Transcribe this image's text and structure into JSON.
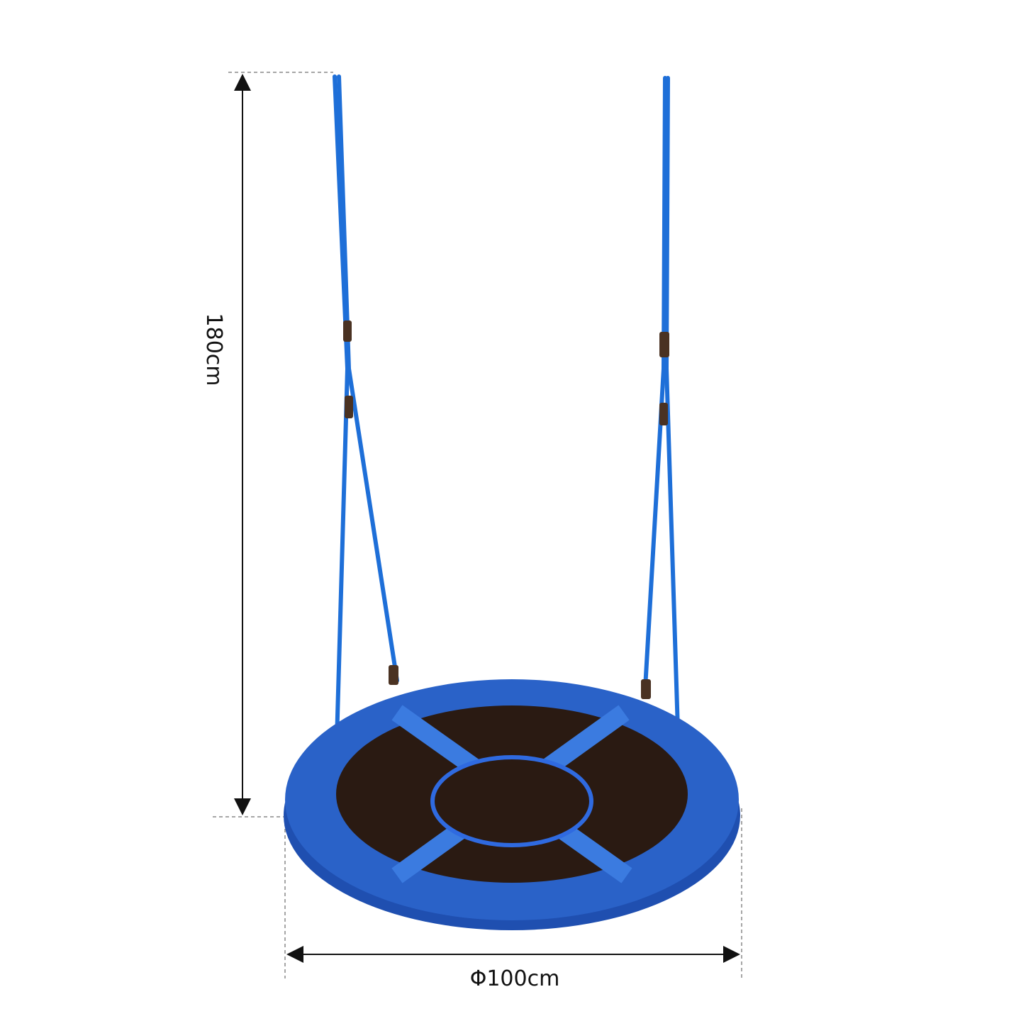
{
  "dimensions": {
    "height": "180cm",
    "diameter": "Φ100cm"
  }
}
